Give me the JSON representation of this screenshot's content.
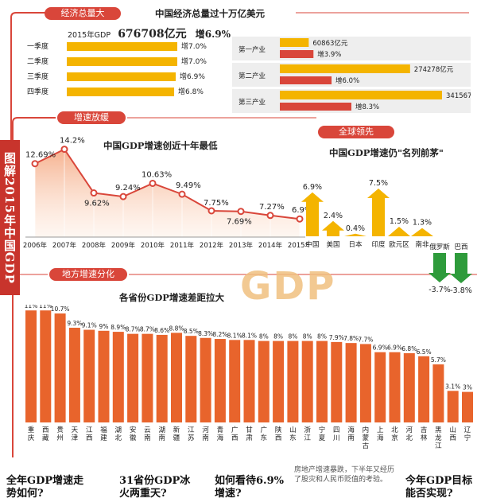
{
  "sidebar_title": "图解2015年中国GDP",
  "section1": {
    "tag": "经济总量大",
    "title": "中国经济总量过十万亿美元",
    "gdp_label": "2015年GDP",
    "gdp_value": "676708亿元",
    "gdp_growth": "增6.9%"
  },
  "section2": {
    "tag": "增速放缓",
    "title": "中国GDP增速创近十年最低"
  },
  "section3": {
    "tag": "全球领先",
    "title": "中国GDP增速仍\"名列前茅\""
  },
  "section4": {
    "tag": "地方增速分化",
    "title": "各省份GDP增速差距拉大",
    "watermark": "GDP"
  },
  "colors": {
    "accent": "#d9463a",
    "gold": "#f4b400",
    "green": "#2e9b3b",
    "orange": "#e8642c"
  },
  "chart_data": [
    {
      "type": "bar",
      "id": "quarterly",
      "categories": [
        "一季度",
        "二季度",
        "三季度",
        "四季度"
      ],
      "values": [
        7.0,
        7.0,
        6.9,
        6.8
      ],
      "labels": [
        "增7.0%",
        "增7.0%",
        "增6.9%",
        "增6.8%"
      ]
    },
    {
      "type": "bar",
      "id": "industries",
      "categories": [
        "第一产业",
        "第二产业",
        "第三产业"
      ],
      "values": [
        60863,
        274278,
        341567
      ],
      "value_labels": [
        "60863亿元",
        "274278亿元",
        "341567亿元"
      ],
      "growth": [
        3.9,
        6.0,
        8.3
      ],
      "growth_labels": [
        "增3.9%",
        "增6.0%",
        "增8.3%"
      ]
    },
    {
      "type": "line",
      "id": "growth_trend",
      "x": [
        "2006年",
        "2007年",
        "2008年",
        "2009年",
        "2010年",
        "2011年",
        "2012年",
        "2013年",
        "2014年",
        "2015年"
      ],
      "y": [
        12.69,
        14.2,
        9.62,
        9.24,
        10.63,
        9.49,
        7.75,
        7.69,
        7.27,
        6.9
      ],
      "labels": [
        "12.69%",
        "14.2%",
        "9.62%",
        "9.24%",
        "10.63%",
        "9.49%",
        "7.75%",
        "7.69%",
        "7.27%",
        "6.9%"
      ]
    },
    {
      "type": "bar",
      "id": "global",
      "categories": [
        "中国",
        "美国",
        "日本",
        "印度",
        "欧元区",
        "南非",
        "俄罗斯",
        "巴西"
      ],
      "values": [
        6.9,
        2.4,
        0.4,
        7.5,
        1.5,
        1.3,
        -3.7,
        -3.8
      ],
      "labels": [
        "6.9%",
        "2.4%",
        "0.4%",
        "7.5%",
        "1.5%",
        "1.3%",
        "-3.7%",
        "-3.8%"
      ]
    },
    {
      "type": "bar",
      "id": "provinces",
      "categories": [
        "重庆",
        "西藏",
        "贵州",
        "天津",
        "江西",
        "福建",
        "湖北",
        "安徽",
        "云南",
        "湖南",
        "新疆",
        "江苏",
        "河南",
        "青海",
        "广西",
        "甘肃",
        "广东",
        "陕西",
        "山东",
        "浙江",
        "宁夏",
        "四川",
        "海南",
        "内蒙古",
        "上海",
        "北京",
        "河北",
        "吉林",
        "黑龙江",
        "山西",
        "辽宁"
      ],
      "values": [
        11,
        11,
        10.7,
        9.3,
        9.1,
        9,
        8.9,
        8.7,
        8.7,
        8.6,
        8.8,
        8.5,
        8.3,
        8.2,
        8.1,
        8.1,
        8,
        8,
        8,
        8,
        8,
        7.9,
        7.8,
        7.7,
        6.9,
        6.9,
        6.8,
        6.5,
        5.7,
        3.1,
        3
      ],
      "labels": [
        "11%",
        "11%",
        "10.7%",
        "9.3%",
        "9.1%",
        "9%",
        "8.9%",
        "8.7%",
        "8.7%",
        "8.6%",
        "8.8%",
        "8.5%",
        "8.3%",
        "8.2%",
        "8.1%",
        "8.1%",
        "8%",
        "8%",
        "8%",
        "8%",
        "8%",
        "7.9%",
        "7.8%",
        "7.7%",
        "6.9%",
        "6.9%",
        "6.8%",
        "6.5%",
        "5.7%",
        "3.1%",
        "3%"
      ]
    }
  ],
  "bottom_links": [
    "全年GDP增速走势如何?",
    "31省份GDP冰火两重天?",
    "如何看待6.9%增速?",
    "房地产增速暴跌，下半年又经历了股灾和人民币贬值的考验。",
    "今年GDP目标能否实现?"
  ]
}
